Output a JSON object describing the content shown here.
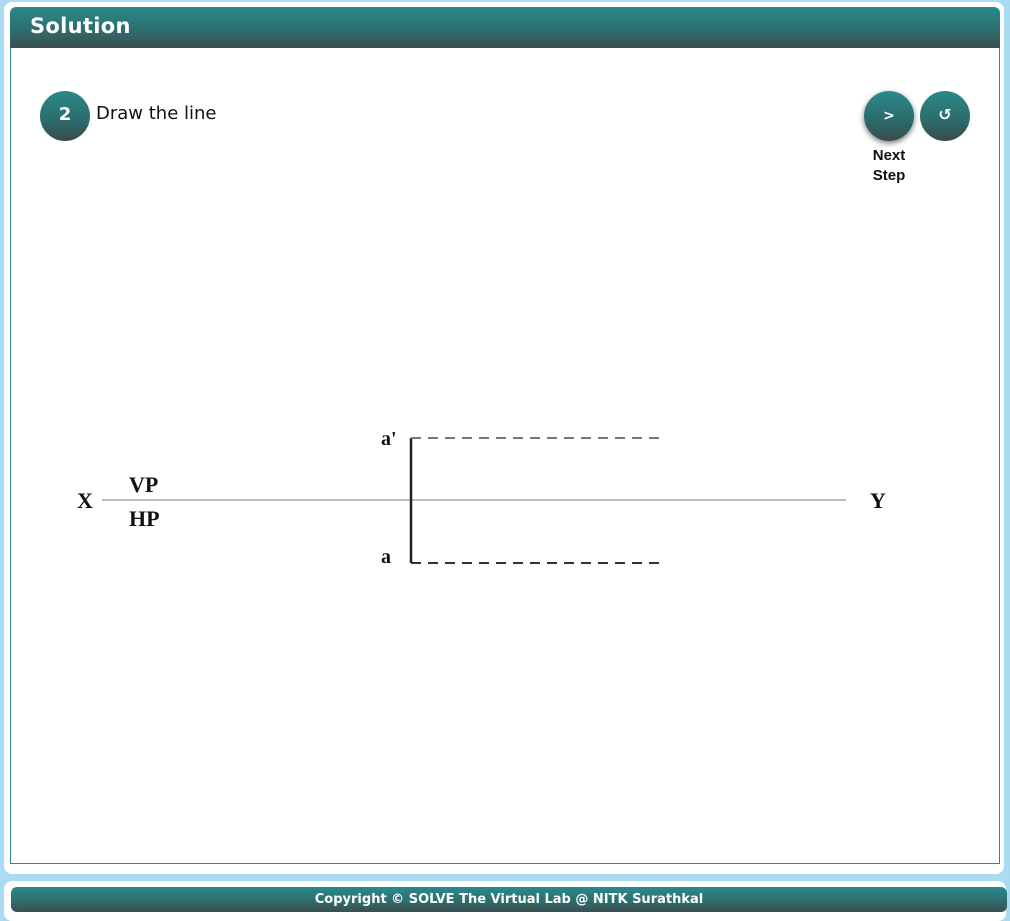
{
  "header": {
    "title": "Solution"
  },
  "step": {
    "number": "2",
    "instruction": "Draw the line"
  },
  "controls": {
    "next_symbol": ">",
    "next_label_line1": "Next",
    "next_label_line2": "Step",
    "reset_symbol": "↺"
  },
  "drawing": {
    "x_label": "X",
    "y_label": "Y",
    "vp_label": "VP",
    "hp_label": "HP",
    "front_point_label": "a'",
    "top_point_label": "a"
  },
  "footer": {
    "copyright": "Copyright © SOLVE The Virtual Lab @ NITK Surathkal"
  },
  "colors": {
    "accent": "#2a8a8a",
    "background": "#a9dcf3"
  }
}
